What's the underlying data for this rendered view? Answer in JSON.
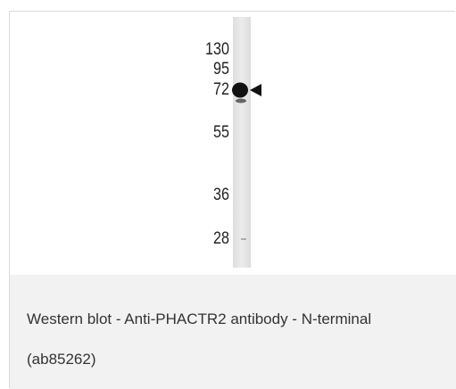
{
  "figure": {
    "markers": [
      "130",
      "95",
      "72",
      "55",
      "36",
      "28"
    ]
  },
  "caption": {
    "text": "Western blot - Anti-PHACTR2 antibody - N-terminal (ab85262)"
  }
}
